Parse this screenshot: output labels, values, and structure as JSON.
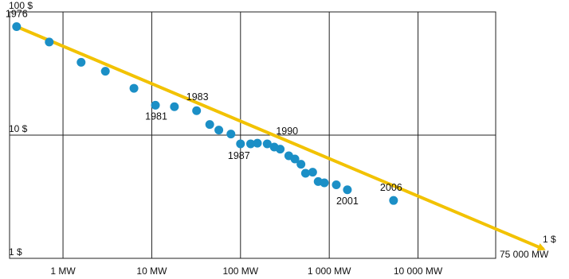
{
  "chart_data": {
    "type": "scatter",
    "title": "",
    "xlabel": "",
    "ylabel": "",
    "x_scale": "log",
    "y_scale": "log",
    "xlim": [
      0.25,
      75000
    ],
    "ylim": [
      1,
      100
    ],
    "grid": true,
    "x_ticks": [
      {
        "value": 1,
        "label": "1 MW"
      },
      {
        "value": 10,
        "label": "10 MW"
      },
      {
        "value": 100,
        "label": "100 MW"
      },
      {
        "value": 1000,
        "label": "1 000 MW"
      },
      {
        "value": 10000,
        "label": "10 000 MW"
      }
    ],
    "x_end_label": "75 000 MW",
    "y_ticks": [
      {
        "value": 100,
        "label": "100 $"
      },
      {
        "value": 10,
        "label": "10 $"
      },
      {
        "value": 1,
        "label": "1 $"
      }
    ],
    "y_end_label": "1 $",
    "colors": {
      "points": "#1b8fc6",
      "trend": "#f2c200",
      "grid": "#222222"
    },
    "trend": {
      "from": [
        0.3,
        76
      ],
      "to": [
        75000,
        1.3
      ]
    },
    "points": [
      [
        0.3,
        76
      ],
      [
        0.7,
        57
      ],
      [
        1.6,
        39
      ],
      [
        3.0,
        33
      ],
      [
        6.3,
        24
      ],
      [
        11,
        17.5
      ],
      [
        18,
        17
      ],
      [
        32,
        15.8
      ],
      [
        45,
        12.2
      ],
      [
        57,
        11
      ],
      [
        78,
        10.2
      ],
      [
        100,
        8.5
      ],
      [
        130,
        8.5
      ],
      [
        155,
        8.6
      ],
      [
        200,
        8.5
      ],
      [
        240,
        8.0
      ],
      [
        280,
        7.7
      ],
      [
        350,
        6.8
      ],
      [
        410,
        6.4
      ],
      [
        480,
        5.8
      ],
      [
        540,
        4.9
      ],
      [
        650,
        5.0
      ],
      [
        750,
        4.2
      ],
      [
        880,
        4.1
      ],
      [
        1200,
        3.95
      ],
      [
        1600,
        3.6
      ],
      [
        5300,
        2.95
      ]
    ],
    "annotations": [
      {
        "text": "1976",
        "x": 0.3,
        "y": 76
      },
      {
        "text": "1981",
        "x": 11,
        "y": 17.5
      },
      {
        "text": "1983",
        "x": 32,
        "y": 15.8
      },
      {
        "text": "1987",
        "x": 100,
        "y": 8.5
      },
      {
        "text": "1990",
        "x": 200,
        "y": 8.5
      },
      {
        "text": "2001",
        "x": 1600,
        "y": 3.6
      },
      {
        "text": "2006",
        "x": 5300,
        "y": 2.95
      }
    ]
  }
}
